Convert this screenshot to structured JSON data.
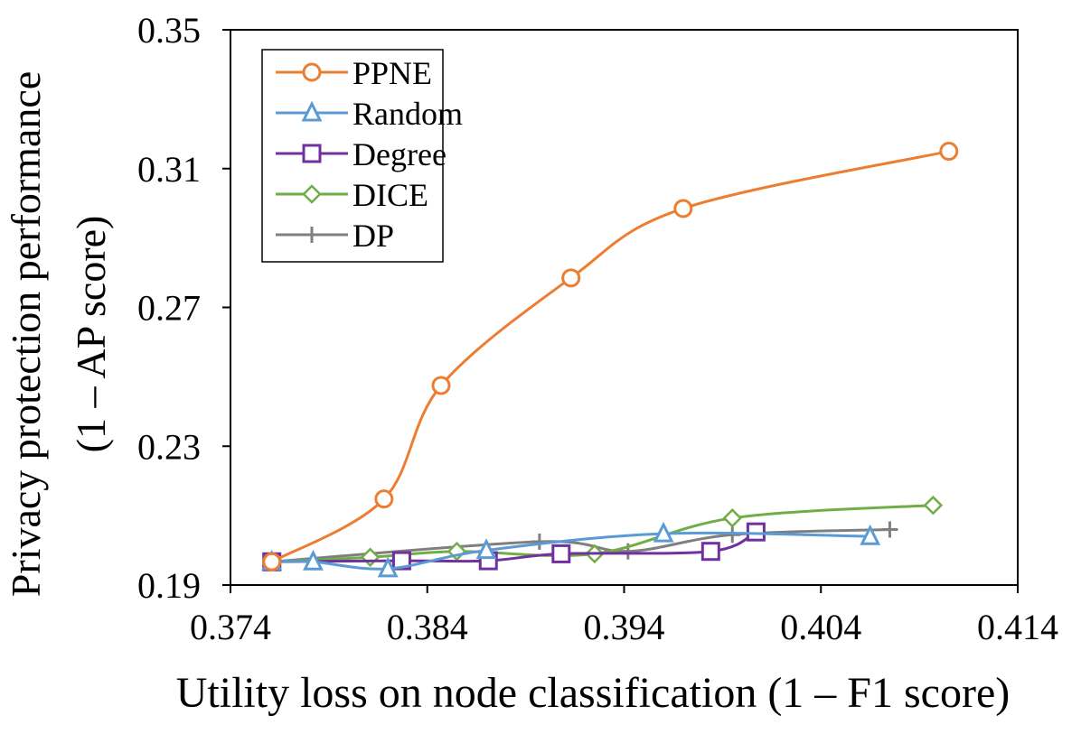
{
  "chart_data": {
    "type": "line",
    "title": "",
    "xlabel": "Utility loss on node classification (1 – F1 score)",
    "ylabel_line1": "Privacy protection performance",
    "ylabel_line2": "(1 – AP score)",
    "xlim": [
      0.374,
      0.414
    ],
    "ylim": [
      0.19,
      0.35
    ],
    "xticks": [
      0.374,
      0.384,
      0.394,
      0.404,
      0.414
    ],
    "xtick_labels": [
      "0.374",
      "0.384",
      "0.394",
      "0.404",
      "0.414"
    ],
    "yticks": [
      0.19,
      0.23,
      0.27,
      0.31,
      0.35
    ],
    "ytick_labels": [
      "0.19",
      "0.23",
      "0.27",
      "0.31",
      "0.35"
    ],
    "grid": false,
    "legend_position": "top-left",
    "series": [
      {
        "name": "PPNE",
        "color": "#ED7D31",
        "marker": "circle",
        "x": [
          0.3761,
          0.3818,
          0.3847,
          0.3913,
          0.397,
          0.4105
        ],
        "y": [
          0.1967,
          0.2148,
          0.2475,
          0.2785,
          0.2985,
          0.315
        ]
      },
      {
        "name": "Random",
        "color": "#5B9BD5",
        "marker": "triangle",
        "x": [
          0.3761,
          0.3782,
          0.382,
          0.387,
          0.396,
          0.4065
        ],
        "y": [
          0.1967,
          0.1967,
          0.1947,
          0.2,
          0.2048,
          0.204
        ]
      },
      {
        "name": "Degree",
        "color": "#7030A0",
        "marker": "square",
        "x": [
          0.3761,
          0.3827,
          0.3871,
          0.3908,
          0.3984,
          0.4007
        ],
        "y": [
          0.1967,
          0.197,
          0.197,
          0.199,
          0.1997,
          0.2053
        ]
      },
      {
        "name": "DICE",
        "color": "#70AD47",
        "marker": "diamond",
        "x": [
          0.3761,
          0.3811,
          0.3855,
          0.3925,
          0.3995,
          0.4097
        ],
        "y": [
          0.1967,
          0.198,
          0.1997,
          0.199,
          0.2093,
          0.213
        ]
      },
      {
        "name": "DP",
        "color": "#7F7F7F",
        "marker": "plus",
        "x": [
          0.3761,
          0.3897,
          0.3942,
          0.3995,
          0.4075
        ],
        "y": [
          0.1967,
          0.2025,
          0.1997,
          0.2045,
          0.206
        ]
      }
    ]
  }
}
